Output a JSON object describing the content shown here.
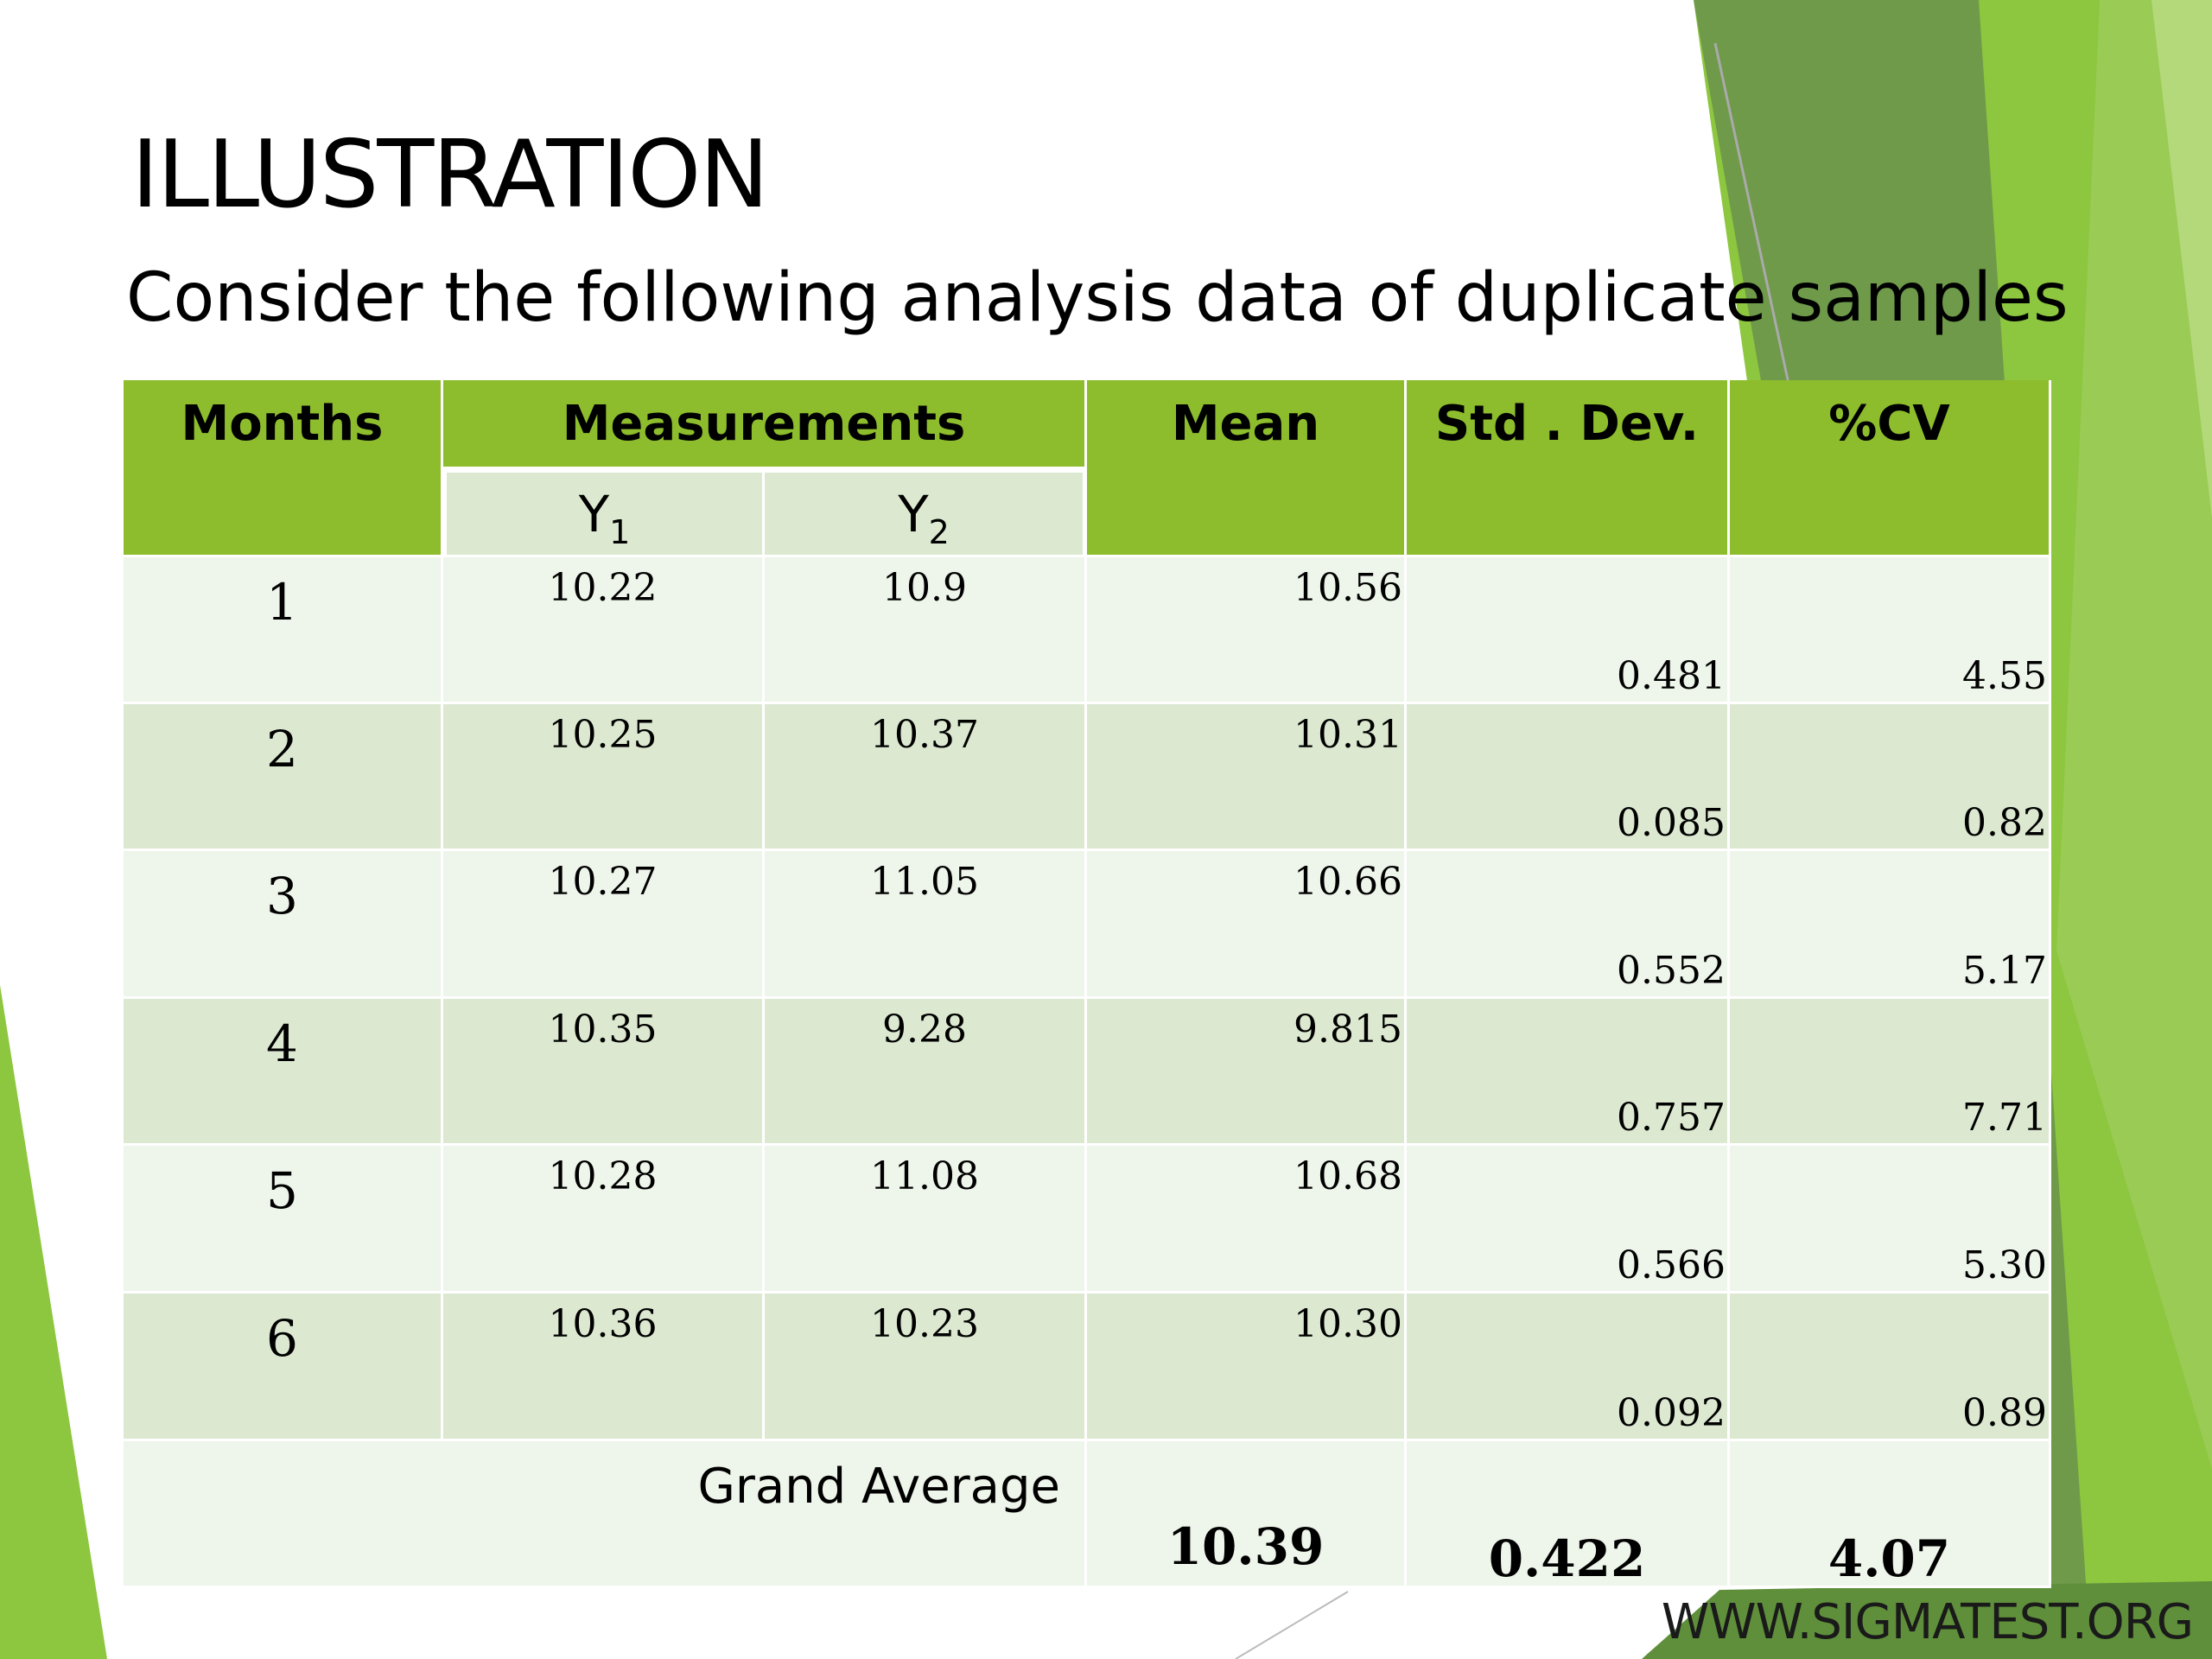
{
  "slide": {
    "title": "ILLUSTRATION",
    "subtitle": "Consider the following analysis data of duplicate samples",
    "footer_url": "WWW.SIGMATEST.ORG"
  },
  "table": {
    "headers": {
      "months": "Months",
      "measurements": "Measurements",
      "y1": "Y",
      "y1_sub": "1",
      "y2": "Y",
      "y2_sub": "2",
      "mean": "Mean",
      "std_dev": "Std . Dev.",
      "cv": "%CV"
    },
    "rows": [
      {
        "month": "1",
        "y1": "10.22",
        "y2": "10.9",
        "mean": "10.56",
        "std": "0.481",
        "cv": "4.55"
      },
      {
        "month": "2",
        "y1": "10.25",
        "y2": "10.37",
        "mean": "10.31",
        "std": "0.085",
        "cv": "0.82"
      },
      {
        "month": "3",
        "y1": "10.27",
        "y2": "11.05",
        "mean": "10.66",
        "std": "0.552",
        "cv": "5.17"
      },
      {
        "month": "4",
        "y1": "10.35",
        "y2": "9.28",
        "mean": "9.815",
        "std": "0.757",
        "cv": "7.71"
      },
      {
        "month": "5",
        "y1": "10.28",
        "y2": "11.08",
        "mean": "10.68",
        "std": "0.566",
        "cv": "5.30"
      },
      {
        "month": "6",
        "y1": "10.36",
        "y2": "10.23",
        "mean": "10.30",
        "std": "0.092",
        "cv": "0.89"
      }
    ],
    "grand_average": {
      "label": "Grand Average",
      "mean": "10.39",
      "std": "0.422",
      "cv": "4.07"
    }
  },
  "colors": {
    "header_green": "#8dbd2c",
    "row_light": "#eef5ea",
    "row_dark": "#dce9d0",
    "accent_green": "#8dc63f",
    "dark_green": "#5f8f3a"
  }
}
